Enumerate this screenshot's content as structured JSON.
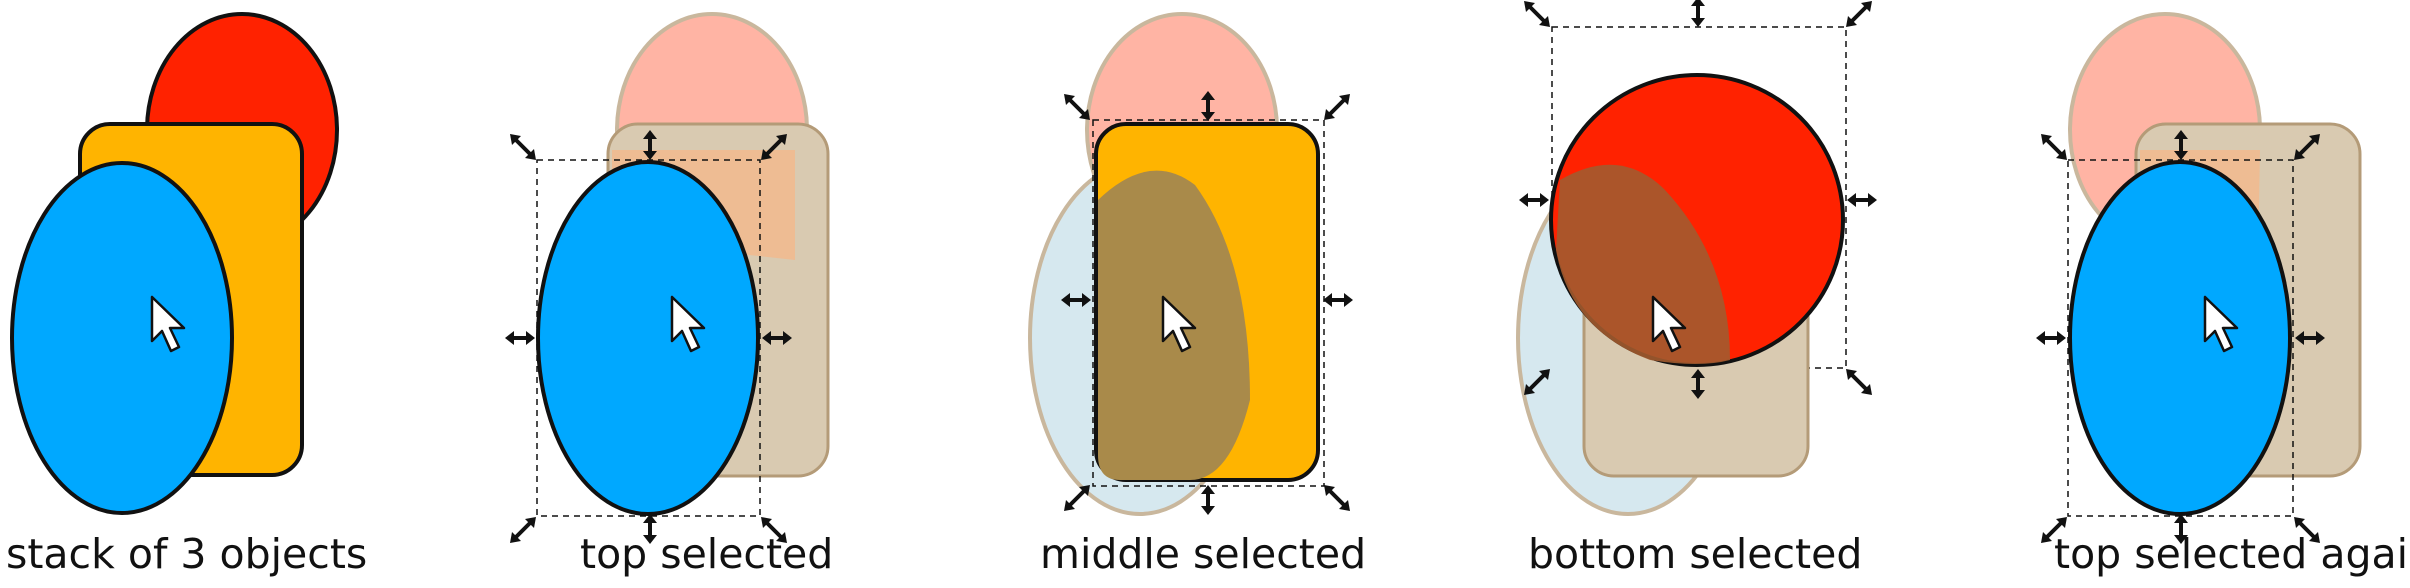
{
  "colors": {
    "red": "#ff2200",
    "orange": "#ffb400",
    "blue": "#00a8ff",
    "outline": "#111111"
  },
  "panels": [
    {
      "caption": "stack of 3 objects",
      "selected": "none"
    },
    {
      "caption": "top selected",
      "selected": "top"
    },
    {
      "caption": "middle selected",
      "selected": "middle"
    },
    {
      "caption": "bottom selected",
      "selected": "bottom"
    },
    {
      "caption": "top selected again",
      "selected": "top"
    }
  ],
  "icons": [
    "mouse-pointer-icon",
    "scale-handle-icon"
  ]
}
